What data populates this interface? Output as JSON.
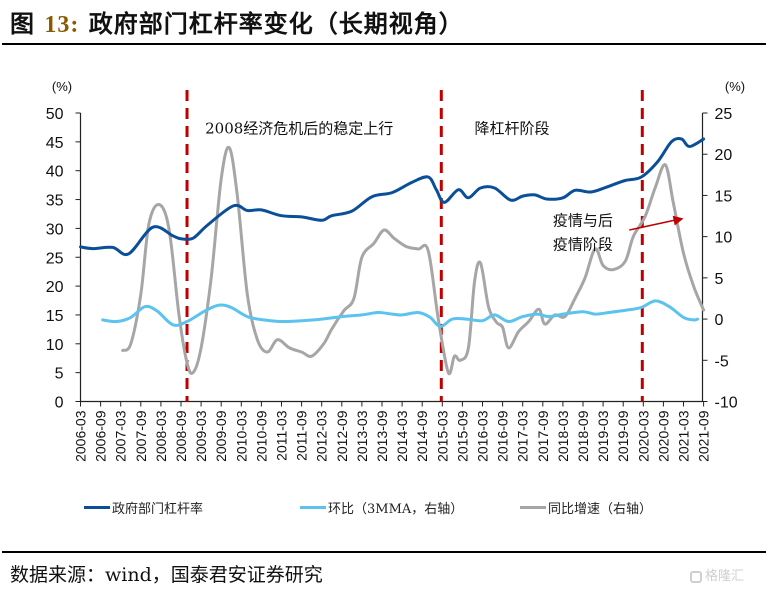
{
  "header": {
    "figure_label": "图",
    "figure_number": "13:",
    "title_text": "政府部门杠杆率变化（长期视角）"
  },
  "footer": {
    "source": "数据来源：wind，国泰君安证券研究",
    "watermark": "格隆汇"
  },
  "colors": {
    "gov_leverage": "#0a4f98",
    "mom": "#5bc3ee",
    "yoy": "#a6a6a6",
    "divider": "#c00000",
    "axis": "#222222"
  },
  "chart_data": {
    "type": "line",
    "title": "政府部门杠杆率变化（长期视角）",
    "left_axis": {
      "unit_label": "(%)",
      "ylim": [
        0,
        50
      ],
      "ticks": [
        "0",
        "5",
        "10",
        "15",
        "20",
        "25",
        "30",
        "35",
        "40",
        "45",
        "50"
      ]
    },
    "right_axis": {
      "unit_label": "(%)",
      "ylim": [
        -10,
        25
      ],
      "ticks": [
        "-10",
        "-5",
        "0",
        "5",
        "10",
        "15",
        "20",
        "25"
      ]
    },
    "x_ticks": [
      "2006-03",
      "2006-09",
      "2007-03",
      "2007-09",
      "2008-03",
      "2008-09",
      "2009-03",
      "2009-09",
      "2010-03",
      "2010-09",
      "2011-03",
      "2011-09",
      "2012-03",
      "2012-09",
      "2013-03",
      "2013-09",
      "2014-03",
      "2014-09",
      "2015-03",
      "2015-09",
      "2016-03",
      "2016-09",
      "2017-03",
      "2017-09",
      "2018-03",
      "2018-09",
      "2019-03",
      "2019-09",
      "2020-03",
      "2020-09",
      "2021-03",
      "2021-09"
    ],
    "x_unit_note": "x values are half-year index from 2006-03 (0) to 2021-09 (31)",
    "grid": false,
    "legend_position": "bottom",
    "dividers": [
      {
        "x": 5.3
      },
      {
        "x": 17.95
      },
      {
        "x": 27.95
      }
    ],
    "annotations": [
      {
        "text": "2008经济危机后的稳定上行",
        "x": 6.2,
        "y_left": 47.5
      },
      {
        "text": "降杠杆阶段",
        "x": 19.6,
        "y_left": 47.5
      },
      {
        "text_line1": "疫情与后",
        "text_line2": "疫情阶段",
        "x": 23.5,
        "y_left": 30.5
      }
    ],
    "arrow": {
      "from": {
        "x": 27.3,
        "y_right": 10.8
      },
      "to": {
        "x": 30.0,
        "y_right": 12.2
      }
    },
    "series": [
      {
        "name": "政府部门杠杆率",
        "axis": "left",
        "color_key": "gov_leverage",
        "points": [
          [
            0,
            26.8
          ],
          [
            0.6,
            26.5
          ],
          [
            1.6,
            26.7
          ],
          [
            2.4,
            25.6
          ],
          [
            3.6,
            30.2
          ],
          [
            4.6,
            28.7
          ],
          [
            5.0,
            28.2
          ],
          [
            5.6,
            28.3
          ],
          [
            6.3,
            30.5
          ],
          [
            7.6,
            33.9
          ],
          [
            8.3,
            33.1
          ],
          [
            9.0,
            33.2
          ],
          [
            10.0,
            32.2
          ],
          [
            11.0,
            32.0
          ],
          [
            12.0,
            31.4
          ],
          [
            12.5,
            32.2
          ],
          [
            13.5,
            33.0
          ],
          [
            14.5,
            35.5
          ],
          [
            15.5,
            36.2
          ],
          [
            16.5,
            38.0
          ],
          [
            17.3,
            38.9
          ],
          [
            17.7,
            36.7
          ],
          [
            18.1,
            34.5
          ],
          [
            18.8,
            36.7
          ],
          [
            19.3,
            35.3
          ],
          [
            19.9,
            37.0
          ],
          [
            20.6,
            37.0
          ],
          [
            21.4,
            34.9
          ],
          [
            22.0,
            35.6
          ],
          [
            22.6,
            35.8
          ],
          [
            23.2,
            35.1
          ],
          [
            24.0,
            35.3
          ],
          [
            24.6,
            36.6
          ],
          [
            25.4,
            36.3
          ],
          [
            26.2,
            37.2
          ],
          [
            27.1,
            38.3
          ],
          [
            27.9,
            38.9
          ],
          [
            28.7,
            41.5
          ],
          [
            29.4,
            45.0
          ],
          [
            29.9,
            45.5
          ],
          [
            30.3,
            44.2
          ],
          [
            31.0,
            45.5
          ]
        ]
      },
      {
        "name": "环比（3MMA，右轴）",
        "axis": "right",
        "color_key": "mom",
        "points": [
          [
            1.1,
            -0.1
          ],
          [
            1.8,
            -0.3
          ],
          [
            2.5,
            0.2
          ],
          [
            3.2,
            1.5
          ],
          [
            3.8,
            1.0
          ],
          [
            4.6,
            -0.7
          ],
          [
            5.3,
            -0.3
          ],
          [
            6.2,
            1.0
          ],
          [
            6.9,
            1.7
          ],
          [
            7.5,
            1.4
          ],
          [
            8.3,
            0.3
          ],
          [
            9.1,
            -0.1
          ],
          [
            10.0,
            -0.3
          ],
          [
            11.0,
            -0.2
          ],
          [
            12.0,
            0.0
          ],
          [
            13.0,
            0.3
          ],
          [
            14.0,
            0.5
          ],
          [
            14.8,
            0.8
          ],
          [
            15.5,
            0.6
          ],
          [
            16.0,
            0.5
          ],
          [
            16.8,
            0.8
          ],
          [
            17.4,
            0.2
          ],
          [
            17.9,
            -0.9
          ],
          [
            18.5,
            0.0
          ],
          [
            19.2,
            0.0
          ],
          [
            20.0,
            -0.2
          ],
          [
            20.6,
            0.5
          ],
          [
            21.3,
            -0.3
          ],
          [
            22.0,
            0.3
          ],
          [
            22.7,
            0.6
          ],
          [
            23.3,
            0.3
          ],
          [
            24.0,
            0.6
          ],
          [
            25.0,
            0.9
          ],
          [
            25.6,
            0.6
          ],
          [
            26.3,
            0.8
          ],
          [
            27.2,
            1.1
          ],
          [
            27.9,
            1.4
          ],
          [
            28.6,
            2.2
          ],
          [
            29.3,
            1.5
          ],
          [
            30.0,
            0.2
          ],
          [
            30.5,
            -0.1
          ],
          [
            30.7,
            0.0
          ]
        ]
      },
      {
        "name": "同比增速（右轴）",
        "axis": "right",
        "color_key": "yoy",
        "points": [
          [
            2.1,
            -3.8
          ],
          [
            2.5,
            -3.0
          ],
          [
            3.0,
            3.0
          ],
          [
            3.4,
            11.5
          ],
          [
            3.9,
            13.9
          ],
          [
            4.4,
            11.0
          ],
          [
            4.9,
            0.5
          ],
          [
            5.3,
            -5.3
          ],
          [
            5.6,
            -6.5
          ],
          [
            6.0,
            -3.5
          ],
          [
            6.5,
            5.0
          ],
          [
            7.0,
            17.0
          ],
          [
            7.4,
            20.8
          ],
          [
            7.8,
            15.0
          ],
          [
            8.3,
            3.0
          ],
          [
            8.8,
            -2.5
          ],
          [
            9.3,
            -4.0
          ],
          [
            9.8,
            -2.5
          ],
          [
            10.4,
            -3.5
          ],
          [
            11.0,
            -4.0
          ],
          [
            11.5,
            -4.5
          ],
          [
            12.1,
            -3.0
          ],
          [
            12.5,
            -1.2
          ],
          [
            13.1,
            1.0
          ],
          [
            13.6,
            2.5
          ],
          [
            14.0,
            7.5
          ],
          [
            14.6,
            9.2
          ],
          [
            15.1,
            10.8
          ],
          [
            15.6,
            9.8
          ],
          [
            16.2,
            8.8
          ],
          [
            16.8,
            8.5
          ],
          [
            17.3,
            8.3
          ],
          [
            17.8,
            0.0
          ],
          [
            18.3,
            -6.5
          ],
          [
            18.6,
            -4.5
          ],
          [
            18.9,
            -5.0
          ],
          [
            19.3,
            -3.5
          ],
          [
            19.6,
            4.5
          ],
          [
            19.9,
            6.8
          ],
          [
            20.3,
            1.5
          ],
          [
            20.7,
            -0.4
          ],
          [
            21.0,
            -1.0
          ],
          [
            21.3,
            -3.5
          ],
          [
            21.8,
            -1.5
          ],
          [
            22.3,
            -0.3
          ],
          [
            22.8,
            1.2
          ],
          [
            23.1,
            -0.6
          ],
          [
            23.6,
            0.5
          ],
          [
            24.1,
            0.3
          ],
          [
            24.6,
            2.5
          ],
          [
            25.1,
            5.0
          ],
          [
            25.6,
            8.5
          ],
          [
            26.0,
            6.5
          ],
          [
            26.5,
            6.0
          ],
          [
            27.1,
            7.0
          ],
          [
            27.5,
            10.0
          ],
          [
            28.1,
            12.5
          ],
          [
            28.6,
            16.0
          ],
          [
            29.1,
            18.7
          ],
          [
            29.5,
            14.0
          ],
          [
            30.0,
            8.0
          ],
          [
            30.5,
            4.0
          ],
          [
            31.0,
            1.1
          ]
        ]
      }
    ]
  }
}
